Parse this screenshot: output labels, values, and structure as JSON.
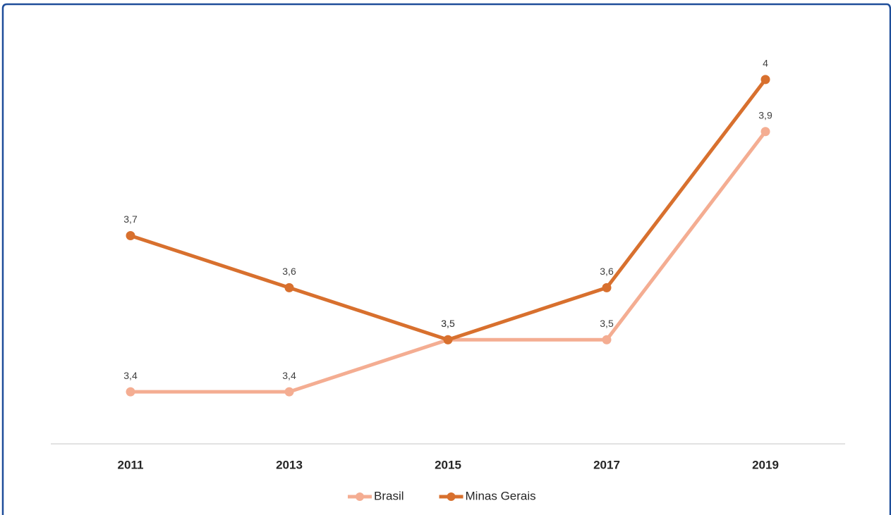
{
  "chart_data": {
    "type": "line",
    "categories": [
      "2011",
      "2013",
      "2015",
      "2017",
      "2019"
    ],
    "series": [
      {
        "name": "Brasil",
        "color": "#f4ad92",
        "values": [
          3.4,
          3.4,
          3.5,
          3.5,
          3.9
        ],
        "value_labels": [
          "3,4",
          "3,4",
          "3,5",
          "3,5",
          "3,9"
        ]
      },
      {
        "name": "Minas Gerais",
        "color": "#d8702e",
        "values": [
          3.7,
          3.6,
          3.5,
          3.6,
          4
        ],
        "value_labels": [
          "3,7",
          "3,6",
          "3,5",
          "3,6",
          "4"
        ]
      }
    ],
    "ylim": [
      3.3,
      4.1
    ],
    "legend": "bottom"
  }
}
